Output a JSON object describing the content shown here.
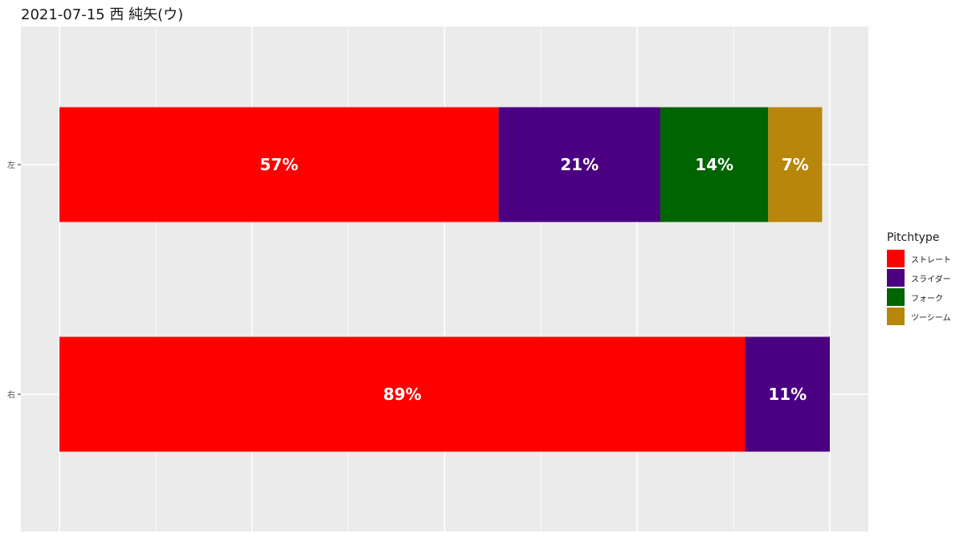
{
  "chart_data": {
    "type": "bar",
    "orientation": "horizontal",
    "stacked": true,
    "normalized": true,
    "title": "2021-07-15 西 純矢(ウ)",
    "xlabel": "",
    "ylabel": "",
    "categories": [
      "左",
      "右"
    ],
    "legend": {
      "title": "Pitchtype",
      "placement": "right"
    },
    "grid": true,
    "series": [
      {
        "name": "ストレート",
        "color": "#ff0000",
        "values": [
          57,
          89
        ],
        "labels": [
          "57%",
          "89%"
        ]
      },
      {
        "name": "スライダー",
        "color": "#4b0082",
        "values": [
          21,
          11
        ],
        "labels": [
          "21%",
          "11%"
        ]
      },
      {
        "name": "フォーク",
        "color": "#006400",
        "values": [
          14,
          0
        ],
        "labels": [
          "14%",
          ""
        ]
      },
      {
        "name": "ツーシーム",
        "color": "#b8860b",
        "values": [
          7,
          0
        ],
        "labels": [
          "7%",
          ""
        ]
      }
    ]
  }
}
